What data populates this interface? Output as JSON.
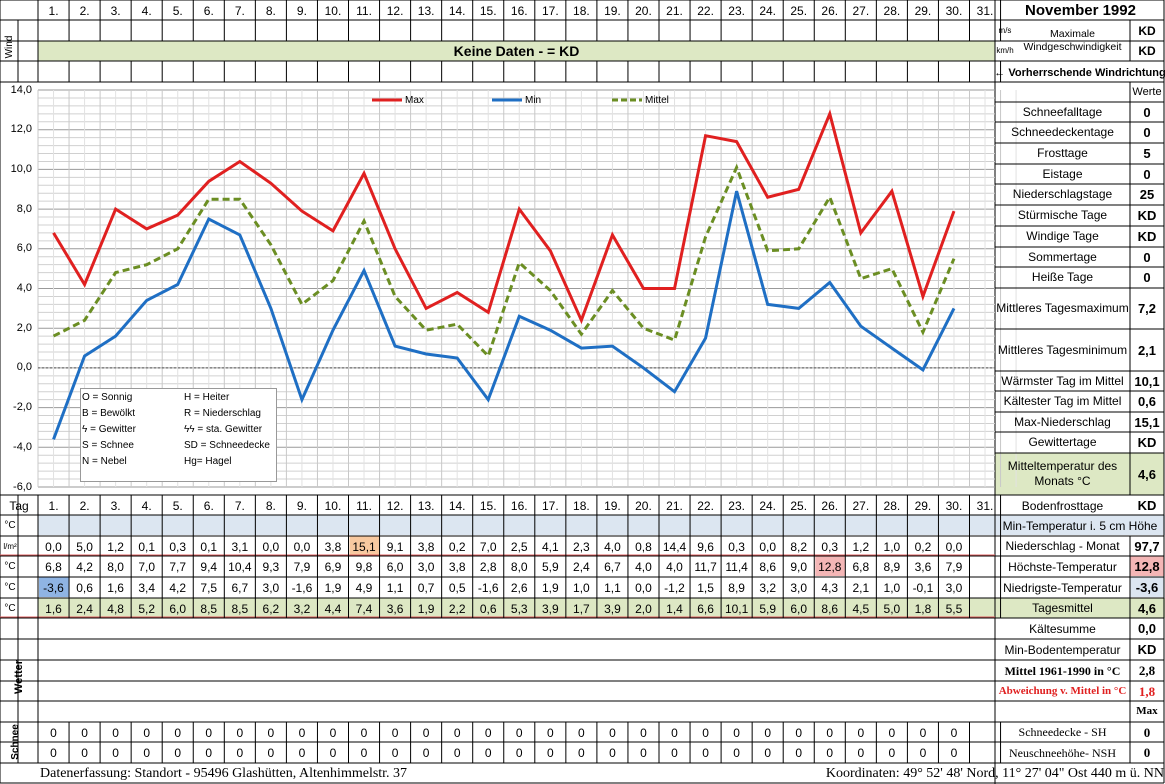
{
  "header": {
    "month": "November 1992",
    "day_labels": [
      "1.",
      "2.",
      "3.",
      "4.",
      "5.",
      "6.",
      "7.",
      "8.",
      "9.",
      "10.",
      "11.",
      "12.",
      "13.",
      "14.",
      "15.",
      "16.",
      "17.",
      "18.",
      "19.",
      "20.",
      "21.",
      "22.",
      "23.",
      "24.",
      "25.",
      "26.",
      "27.",
      "28.",
      "29.",
      "30.",
      "31."
    ],
    "wind_label": "Wind",
    "wind_note": "Keine Daten -  = KD",
    "unit_ms": "m/s",
    "unit_kmh": "km/h",
    "max_wind_label": "Maximale Windgeschwindigkeit",
    "max_wind_ms": "KD",
    "max_wind_kmh": "KD",
    "prevailing_wind": "← Vorherrschende Windrichtung"
  },
  "summary": {
    "values_header": "Werte",
    "rows": [
      {
        "label": "Schneefalltage",
        "value": "0"
      },
      {
        "label": "Schneedeckentage",
        "value": "0"
      },
      {
        "label": "Frosttage",
        "value": "5"
      },
      {
        "label": "Eistage",
        "value": "0"
      },
      {
        "label": "Niederschlagstage",
        "value": "25"
      },
      {
        "label": "Stürmische Tage",
        "value": "KD"
      },
      {
        "label": "Windige Tage",
        "value": "KD"
      },
      {
        "label": "Sommertage",
        "value": "0"
      },
      {
        "label": "Heiße Tage",
        "value": "0"
      },
      {
        "label": "Mittleres Tagesmaximum",
        "value": "7,2"
      },
      {
        "label": "Mittleres Tagesminimum",
        "value": "2,1"
      },
      {
        "label": "Wärmster Tag im Mittel",
        "value": "10,1"
      },
      {
        "label": "Kältester Tag im Mittel",
        "value": "0,6"
      },
      {
        "label": "Max-Niederschlag",
        "value": "15,1"
      },
      {
        "label": "Gewittertage",
        "value": "KD"
      },
      {
        "label": "Mitteltemperatur des Monats °C",
        "value": "4,6"
      },
      {
        "label": "Bodenfrosttage",
        "value": "KD"
      }
    ]
  },
  "legend_box": {
    "items": [
      "O = Sonnig",
      "H = Heiter",
      "B = Bewölkt",
      "R = Niederschlag",
      "ϟ = Gewitter",
      "ϟϟ = sta. Gewitter",
      "S = Schnee",
      "SD = Schneedecke",
      "N = Nebel",
      "Hg= Hagel"
    ]
  },
  "table": {
    "tag_label": "Tag",
    "unit_c": "°C",
    "unit_lm2": "l/m²",
    "precip": [
      "0,0",
      "5,0",
      "1,2",
      "0,1",
      "0,3",
      "0,1",
      "3,1",
      "0,0",
      "0,0",
      "3,8",
      "15,1",
      "9,1",
      "3,8",
      "0,2",
      "7,0",
      "2,5",
      "4,1",
      "2,3",
      "4,0",
      "0,8",
      "14,4",
      "9,6",
      "0,3",
      "0,0",
      "8,2",
      "0,3",
      "1,2",
      "1,0",
      "0,2",
      "0,0"
    ],
    "max": [
      "6,8",
      "4,2",
      "8,0",
      "7,0",
      "7,7",
      "9,4",
      "10,4",
      "9,3",
      "7,9",
      "6,9",
      "9,8",
      "6,0",
      "3,0",
      "3,8",
      "2,8",
      "8,0",
      "5,9",
      "2,4",
      "6,7",
      "4,0",
      "4,0",
      "11,7",
      "11,4",
      "8,6",
      "9,0",
      "12,8",
      "6,8",
      "8,9",
      "3,6",
      "7,9"
    ],
    "min": [
      "-3,6",
      "0,6",
      "1,6",
      "3,4",
      "4,2",
      "7,5",
      "6,7",
      "3,0",
      "-1,6",
      "1,9",
      "4,9",
      "1,1",
      "0,7",
      "0,5",
      "-1,6",
      "2,6",
      "1,9",
      "1,0",
      "1,1",
      "0,0",
      "-1,2",
      "1,5",
      "8,9",
      "3,2",
      "3,0",
      "4,3",
      "2,1",
      "1,0",
      "-0,1",
      "3,0"
    ],
    "mean": [
      "1,6",
      "2,4",
      "4,8",
      "5,2",
      "6,0",
      "8,5",
      "8,5",
      "6,2",
      "3,2",
      "4,4",
      "7,4",
      "3,6",
      "1,9",
      "2,2",
      "0,6",
      "5,3",
      "3,9",
      "1,7",
      "3,9",
      "2,0",
      "1,4",
      "6,6",
      "10,1",
      "5,9",
      "6,0",
      "8,6",
      "4,5",
      "5,0",
      "1,8",
      "5,5"
    ],
    "snow_row_labels": "Schnee",
    "weather_label": "Wetter",
    "snow_sh": [
      "0",
      "0",
      "0",
      "0",
      "0",
      "0",
      "0",
      "0",
      "0",
      "0",
      "0",
      "0",
      "0",
      "0",
      "0",
      "0",
      "0",
      "0",
      "0",
      "0",
      "0",
      "0",
      "0",
      "0",
      "0",
      "0",
      "0",
      "0",
      "0",
      "0"
    ],
    "snow_nsh": [
      "0",
      "0",
      "0",
      "0",
      "0",
      "0",
      "0",
      "0",
      "0",
      "0",
      "0",
      "0",
      "0",
      "0",
      "0",
      "0",
      "0",
      "0",
      "0",
      "0",
      "0",
      "0",
      "0",
      "0",
      "0",
      "0",
      "0",
      "0",
      "0",
      "0"
    ]
  },
  "right_table": {
    "rows": [
      {
        "label": "Min-Temperatur i. 5 cm Höhe",
        "value": ""
      },
      {
        "label": "Niederschlag - Monat",
        "value": "97,7"
      },
      {
        "label": "Höchste-Temperatur",
        "value": "12,8"
      },
      {
        "label": "Niedrigste-Temperatur",
        "value": "-3,6"
      },
      {
        "label": "Tagesmittel",
        "value": "4,6"
      },
      {
        "label": "Kältesumme",
        "value": "0,0"
      },
      {
        "label": "Min-Bodentemperatur",
        "value": "KD"
      },
      {
        "label": "Mittel 1961-1990 in °C",
        "value": "2,8"
      },
      {
        "label": "Abweichung v. Mittel in °C",
        "value": "1,8"
      },
      {
        "label": "",
        "value": "Max"
      },
      {
        "label": "Schneedecke -   SH",
        "value": "0"
      },
      {
        "label": "Neuschneehöhe- NSH",
        "value": "0"
      }
    ]
  },
  "footer": {
    "left": "Datenerfassung:  Standort -   95496  Glashütten, Altenhimmelstr. 37",
    "right": "Koordinaten:  49° 52' 48' Nord,  11° 27' 04\" Ost   440 m ü. NN"
  },
  "colors": {
    "max": "#e02020",
    "min": "#1f6fc4",
    "mean": "#6b8e23",
    "green_bg": "#dde8c4",
    "blue_bg": "#dce6f1"
  },
  "chart_data": {
    "type": "line",
    "x": [
      1,
      2,
      3,
      4,
      5,
      6,
      7,
      8,
      9,
      10,
      11,
      12,
      13,
      14,
      15,
      16,
      17,
      18,
      19,
      20,
      21,
      22,
      23,
      24,
      25,
      26,
      27,
      28,
      29,
      30
    ],
    "ylim": [
      -6,
      14
    ],
    "y_ticks": [
      "14,0",
      "12,0",
      "10,0",
      "8,0",
      "6,0",
      "4,0",
      "2,0",
      "0,0",
      "-2,0",
      "-4,0",
      "-6,0"
    ],
    "legend_placement": "top",
    "series": [
      {
        "name": "Max",
        "values": [
          6.8,
          4.2,
          8.0,
          7.0,
          7.7,
          9.4,
          10.4,
          9.3,
          7.9,
          6.9,
          9.8,
          6.0,
          3.0,
          3.8,
          2.8,
          8.0,
          5.9,
          2.4,
          6.7,
          4.0,
          4.0,
          11.7,
          11.4,
          8.6,
          9.0,
          12.8,
          6.8,
          8.9,
          3.6,
          7.9
        ]
      },
      {
        "name": "Min",
        "values": [
          -3.6,
          0.6,
          1.6,
          3.4,
          4.2,
          7.5,
          6.7,
          3.0,
          -1.6,
          1.9,
          4.9,
          1.1,
          0.7,
          0.5,
          -1.6,
          2.6,
          1.9,
          1.0,
          1.1,
          0.0,
          -1.2,
          1.5,
          8.9,
          3.2,
          3.0,
          4.3,
          2.1,
          1.0,
          -0.1,
          3.0
        ]
      },
      {
        "name": "Mittel",
        "values": [
          1.6,
          2.4,
          4.8,
          5.2,
          6.0,
          8.5,
          8.5,
          6.2,
          3.2,
          4.4,
          7.4,
          3.6,
          1.9,
          2.2,
          0.6,
          5.3,
          3.9,
          1.7,
          3.9,
          2.0,
          1.4,
          6.6,
          10.1,
          5.9,
          6.0,
          8.6,
          4.5,
          5.0,
          1.8,
          5.5
        ]
      }
    ]
  }
}
